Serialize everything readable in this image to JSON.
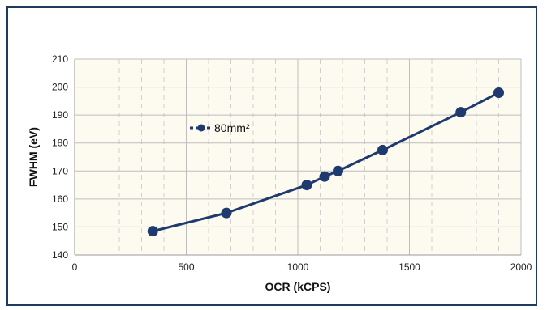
{
  "chart_data": {
    "type": "line",
    "title": "",
    "xlabel": "OCR (kCPS)",
    "ylabel": "FWHM (eV)",
    "xlim": [
      0,
      2000
    ],
    "ylim": [
      140,
      210
    ],
    "xticks": [
      0,
      500,
      1000,
      1500,
      2000
    ],
    "yticks": [
      140,
      150,
      160,
      170,
      180,
      190,
      200,
      210
    ],
    "grid": true,
    "legend_position": "upper-left",
    "series": [
      {
        "name": "80mm²",
        "color": "#1f3a6e",
        "x": [
          350,
          680,
          1040,
          1120,
          1180,
          1380,
          1730,
          1900
        ],
        "y": [
          148.5,
          155,
          165,
          168,
          170,
          177.5,
          191,
          198
        ]
      }
    ]
  }
}
